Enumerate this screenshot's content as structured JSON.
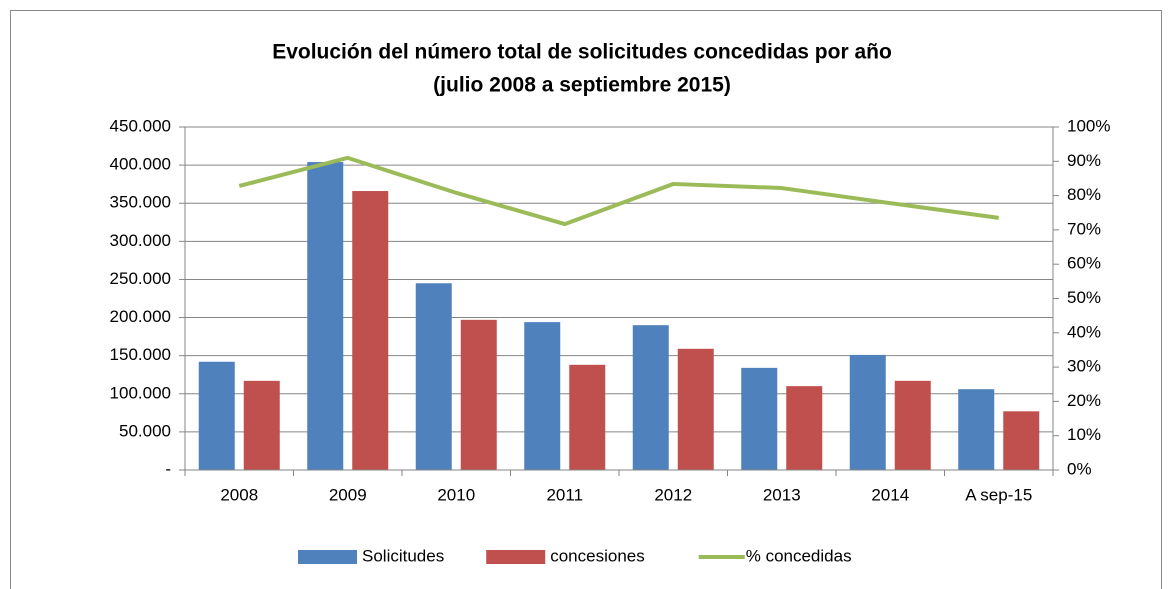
{
  "chart_data": {
    "type": "bar",
    "title": "Evolución del número total de solicitudes concedidas por año",
    "subtitle": "(julio 2008 a septiembre 2015)",
    "categories": [
      "2008",
      "2009",
      "2010",
      "2011",
      "2012",
      "2013",
      "2014",
      "A sep-15"
    ],
    "series": [
      {
        "name": "Solicitudes",
        "color": "#4f81bd",
        "type": "bar",
        "values": [
          142000,
          404000,
          245000,
          194000,
          190000,
          134000,
          151000,
          106000
        ]
      },
      {
        "name": "concesiones",
        "color": "#c0504d",
        "type": "bar",
        "values": [
          117000,
          366000,
          197000,
          138000,
          159000,
          110000,
          117000,
          77000
        ]
      },
      {
        "name": "% concedidas",
        "color": "#9bbb59",
        "type": "line",
        "axis": "y2",
        "values": [
          82.8,
          91,
          80.8,
          71.7,
          83.4,
          82.2,
          77.8,
          73.5
        ]
      }
    ],
    "ylim": [
      0,
      450000
    ],
    "yticks": [
      {
        "value": 0,
        "label": "-"
      },
      {
        "value": 50000,
        "label": "50.000"
      },
      {
        "value": 100000,
        "label": "100.000"
      },
      {
        "value": 150000,
        "label": "150.000"
      },
      {
        "value": 200000,
        "label": "200.000"
      },
      {
        "value": 250000,
        "label": "250.000"
      },
      {
        "value": 300000,
        "label": "300.000"
      },
      {
        "value": 350000,
        "label": "350.000"
      },
      {
        "value": 400000,
        "label": "400.000"
      },
      {
        "value": 450000,
        "label": "450.000"
      }
    ],
    "y2lim": [
      0,
      100
    ],
    "y2ticks": [
      {
        "value": 0,
        "label": "0%"
      },
      {
        "value": 10,
        "label": "10%"
      },
      {
        "value": 20,
        "label": "20%"
      },
      {
        "value": 30,
        "label": "30%"
      },
      {
        "value": 40,
        "label": "40%"
      },
      {
        "value": 50,
        "label": "50%"
      },
      {
        "value": 60,
        "label": "60%"
      },
      {
        "value": 70,
        "label": "70%"
      },
      {
        "value": 80,
        "label": "80%"
      },
      {
        "value": 90,
        "label": "90%"
      },
      {
        "value": 100,
        "label": "100%"
      }
    ],
    "grid": true,
    "legend": "bottom"
  }
}
